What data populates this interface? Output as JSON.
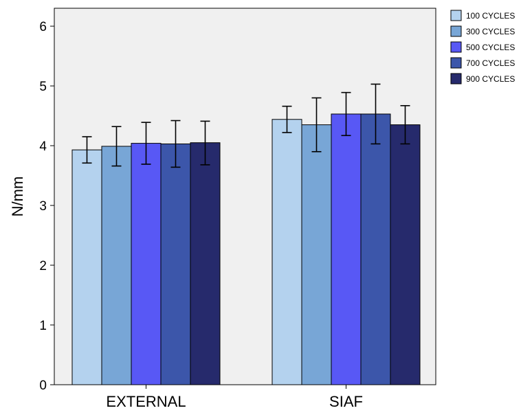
{
  "chart_data": {
    "type": "bar",
    "title": "",
    "xlabel": "",
    "ylabel": "N/mm",
    "ylim": [
      0,
      6.3
    ],
    "yticks": [
      0,
      1,
      2,
      3,
      4,
      5,
      6
    ],
    "grid": false,
    "legend_position": "top-right",
    "background_color": "#f0f0f0",
    "categories": [
      "EXTERNAL",
      "SIAF"
    ],
    "series": [
      {
        "name": "100 CYCLES",
        "color": "#b4d2ee",
        "values": [
          3.93,
          4.44
        ],
        "error_low": [
          3.71,
          4.22
        ],
        "error_high": [
          4.15,
          4.66
        ]
      },
      {
        "name": "300 CYCLES",
        "color": "#78a6d6",
        "values": [
          3.99,
          4.35
        ],
        "error_low": [
          3.66,
          3.9
        ],
        "error_high": [
          4.32,
          4.8
        ]
      },
      {
        "name": "500 CYCLES",
        "color": "#5858f5",
        "values": [
          4.04,
          4.53
        ],
        "error_low": [
          3.69,
          4.17
        ],
        "error_high": [
          4.39,
          4.89
        ]
      },
      {
        "name": "700 CYCLES",
        "color": "#3c56aa",
        "values": [
          4.03,
          4.53
        ],
        "error_low": [
          3.64,
          4.03
        ],
        "error_high": [
          4.42,
          5.03
        ]
      },
      {
        "name": "900 CYCLES",
        "color": "#262a6c",
        "values": [
          4.05,
          4.35
        ],
        "error_low": [
          3.68,
          4.03
        ],
        "error_high": [
          4.41,
          4.67
        ]
      }
    ]
  }
}
